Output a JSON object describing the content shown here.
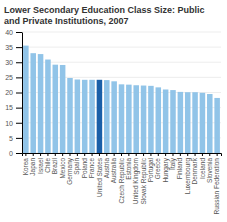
{
  "chart_data": {
    "type": "bar",
    "title": "Lower Secondary Education Class Size: Public and Private Institutions, 2007",
    "categories": [
      "Korea",
      "Japan",
      "Israel",
      "Chile",
      "Brazil",
      "Mexico",
      "Germany",
      "Spain",
      "Poland",
      "France",
      "United States",
      "Austria",
      "Australia",
      "Czech Republic",
      "Estonia",
      "United Kingdom",
      "Slovak Republic",
      "Portugal",
      "Greece",
      "Hungary",
      "Italy",
      "Finland",
      "Luxembourg",
      "Denmark",
      "Iceland",
      "Slovenia",
      "Russian Federation"
    ],
    "values": [
      35.5,
      33.0,
      32.7,
      30.9,
      29.2,
      29.1,
      24.8,
      24.3,
      24.2,
      24.2,
      24.2,
      24.1,
      23.7,
      22.7,
      22.6,
      22.4,
      22.3,
      22.2,
      21.7,
      21.0,
      20.8,
      20.2,
      20.1,
      20.1,
      19.9,
      19.5,
      18.2
    ],
    "colors": [
      "#91c4e8",
      "#91c4e8",
      "#91c4e8",
      "#91c4e8",
      "#91c4e8",
      "#91c4e8",
      "#91c4e8",
      "#91c4e8",
      "#91c4e8",
      "#91c4e8",
      "#1a5fa8",
      "#91c4e8",
      "#91c4e8",
      "#91c4e8",
      "#91c4e8",
      "#91c4e8",
      "#91c4e8",
      "#91c4e8",
      "#91c4e8",
      "#91c4e8",
      "#91c4e8",
      "#91c4e8",
      "#91c4e8",
      "#91c4e8",
      "#91c4e8",
      "#91c4e8",
      "#91c4e8"
    ],
    "ylim": [
      0,
      40
    ],
    "yticks": [
      0,
      5,
      10,
      15,
      20,
      25,
      30,
      35,
      40
    ],
    "grid": true
  }
}
